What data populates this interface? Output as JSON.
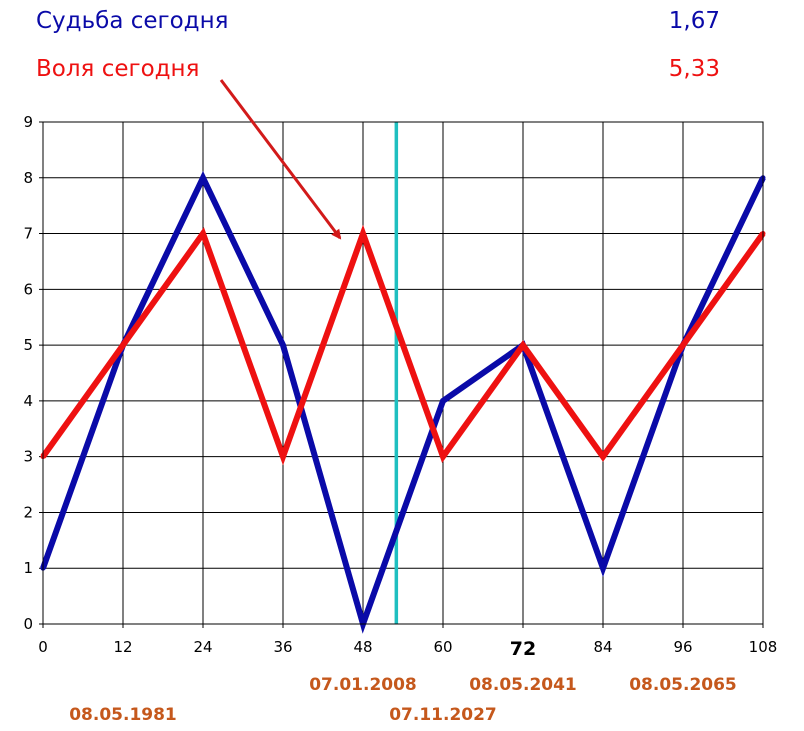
{
  "legend": {
    "fate_label": "Судьба сегодня",
    "fate_value": "1,67",
    "will_label": "Воля сегодня",
    "will_value": "5,33"
  },
  "colors": {
    "fate": "#0a0aa8",
    "will": "#ee1111",
    "current": "#1ebfc0",
    "date": "#c5581c",
    "arrow": "#d21a1a"
  },
  "chart_data": {
    "type": "line",
    "title": "",
    "xlabel": "",
    "ylabel": "",
    "x": [
      0,
      12,
      24,
      36,
      48,
      60,
      72,
      84,
      96,
      108
    ],
    "x_tick_labels": [
      "0",
      "12",
      "24",
      "36",
      "48",
      "60",
      "72",
      "84",
      "96",
      "108"
    ],
    "highlighted_x_tick": "72",
    "y_ticks": [
      0,
      1,
      2,
      3,
      4,
      5,
      6,
      7,
      8,
      9
    ],
    "xlim": [
      0,
      108
    ],
    "ylim": [
      0,
      9
    ],
    "grid": true,
    "series": [
      {
        "key": "fate",
        "values": [
          1,
          5,
          8,
          5,
          0,
          4,
          5,
          1,
          5,
          8
        ]
      },
      {
        "key": "will",
        "values": [
          3,
          5,
          7,
          3,
          7,
          3,
          5,
          3,
          5,
          7
        ]
      }
    ],
    "current_marker_x": 53,
    "date_labels": [
      {
        "text": "08.05.1981",
        "x": 12,
        "row": 2
      },
      {
        "text": "07.01.2008",
        "x": 48,
        "row": 1
      },
      {
        "text": "07.11.2027",
        "x": 60,
        "row": 2
      },
      {
        "text": "08.05.2041",
        "x": 72,
        "row": 1
      },
      {
        "text": "08.05.2065",
        "x": 96,
        "row": 1
      }
    ]
  }
}
